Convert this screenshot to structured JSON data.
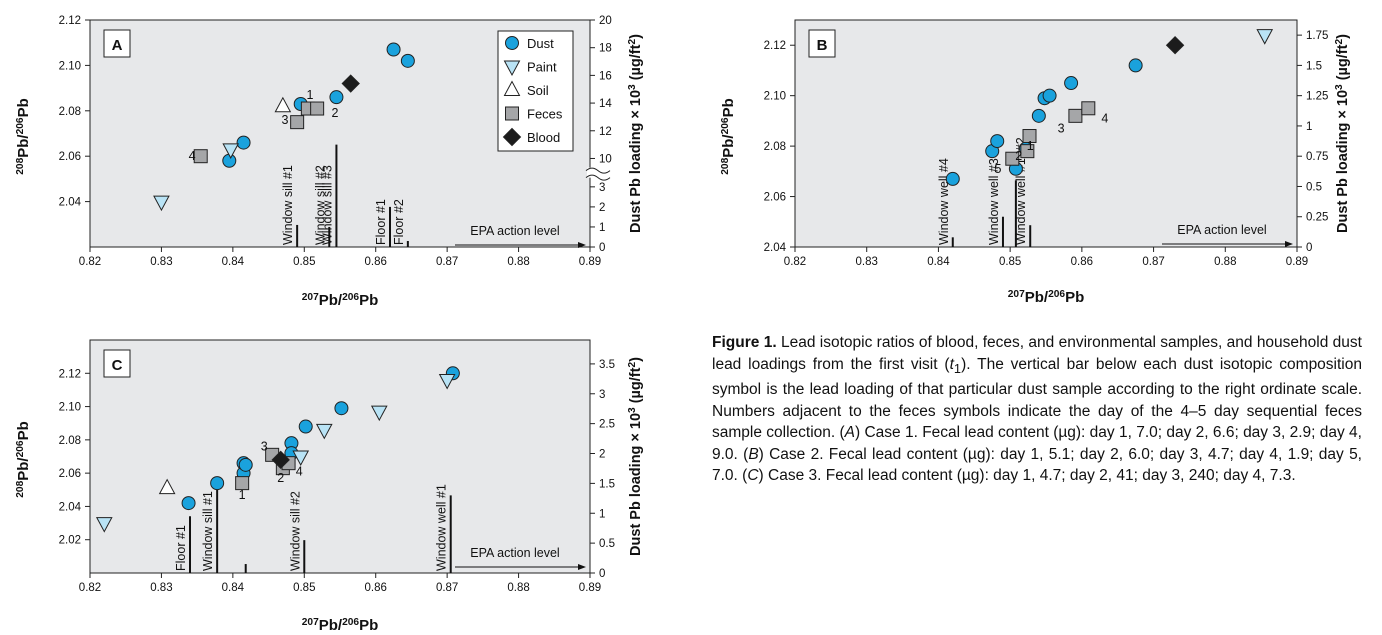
{
  "colors": {
    "plot_bg": "#e7e8ea",
    "dust": "#1aa2dd",
    "paint": "#b9e3f5",
    "soil": "#ffffff",
    "feces": "#a5a6a8",
    "blood": "#1c1c1c"
  },
  "legend": {
    "entries": [
      {
        "label": "Dust",
        "symbol": "circle"
      },
      {
        "label": "Paint",
        "symbol": "triangle-down"
      },
      {
        "label": "Soil",
        "symbol": "triangle-up"
      },
      {
        "label": "Feces",
        "symbol": "square"
      },
      {
        "label": "Blood",
        "symbol": "diamond"
      }
    ]
  },
  "caption": {
    "figure_label": "Figure 1.",
    "text_1": " Lead isotopic ratios of blood, feces, and environmental samples, and household dust lead loadings from the first visit (",
    "t_symbol": "t",
    "t_sub": "1",
    "text_2": "). The vertical bar below each dust isotopic composition symbol is the lead loading of that particular dust sample according to the right ordinate scale. Numbers adjacent to the feces symbols indicate the day of the 4–5 day sequential feces sample collection. (",
    "case_a": "A",
    "text_3": ") Case 1. Fecal lead content (µg): day 1, 7.0; day 2, 6.6; day 3, 2.9; day 4, 9.0. (",
    "case_b": "B",
    "text_4": ") Case 2. Fecal lead content (µg): day 1, 5.1; day 2, 6.0; day 3, 4.7; day 4, 1.9; day 5, 7.0. (",
    "case_c": "C",
    "text_5": ") Case 3. Fecal lead content (µg): day 1, 4.7; day 2, 41; day 3, 240; day 4, 7.3."
  },
  "chart_data": [
    {
      "panel": "A",
      "type": "scatter",
      "xlabel": "207Pb/206Pb",
      "ylabel": "208Pb/206Pb",
      "y2label": "Dust Pb loading × 103 (µg/ft2)",
      "xlim": [
        0.82,
        0.89
      ],
      "ylim": [
        2.02,
        2.12
      ],
      "xticks": [
        "0.82",
        "0.83",
        "0.84",
        "0.85",
        "0.86",
        "0.87",
        "0.88",
        "0.89"
      ],
      "yticks": [
        "2.04",
        "2.06",
        "2.08",
        "2.10",
        "2.12"
      ],
      "y2ticks_lower": [
        "0",
        "1",
        "2",
        "3"
      ],
      "y2ticks_upper": [
        "10",
        "12",
        "14",
        "16",
        "18",
        "20"
      ],
      "y2_break": [
        3,
        10
      ],
      "series": [
        {
          "name": "Dust",
          "points": [
            [
              0.8395,
              2.058
            ],
            [
              0.8415,
              2.066
            ],
            [
              0.8495,
              2.083
            ],
            [
              0.8545,
              2.086
            ],
            [
              0.8625,
              2.107
            ],
            [
              0.8645,
              2.102
            ]
          ]
        },
        {
          "name": "Paint",
          "points": [
            [
              0.83,
              2.04
            ],
            [
              0.8397,
              2.063
            ]
          ]
        },
        {
          "name": "Soil",
          "points": [
            [
              0.847,
              2.082
            ]
          ]
        },
        {
          "name": "Feces",
          "points": [
            [
              0.8355,
              2.06
            ],
            [
              0.8505,
              2.081
            ],
            [
              0.8518,
              2.081
            ],
            [
              0.849,
              2.075
            ]
          ],
          "labels": [
            "4",
            "1",
            "2",
            "3"
          ]
        },
        {
          "name": "Blood",
          "points": [
            [
              0.8565,
              2.092
            ]
          ]
        }
      ],
      "feces_labels": [
        {
          "text": "4",
          "x": 0.8343,
          "y": 2.06
        },
        {
          "text": "1",
          "x": 0.8508,
          "y": 2.087
        },
        {
          "text": "2",
          "x": 0.8543,
          "y": 2.079
        },
        {
          "text": "3",
          "x": 0.8473,
          "y": 2.076
        }
      ],
      "loading_bars": [
        {
          "label": "Window sill #1",
          "x": 0.849,
          "value": 1.1
        },
        {
          "label": "Window sill #2",
          "x": 0.8535,
          "value": 1.0
        },
        {
          "label": "Window sill #3",
          "x": 0.8545,
          "value": 11.0
        },
        {
          "label": "Floor #1",
          "x": 0.862,
          "value": 2.0
        },
        {
          "label": "Floor #2",
          "x": 0.8645,
          "value": 0.3
        }
      ],
      "epa_level": 0.1,
      "epa_label": "EPA action level"
    },
    {
      "panel": "B",
      "type": "scatter",
      "xlabel": "207Pb/206Pb",
      "ylabel": "208Pb/206Pb",
      "y2label": "Dust Pb loading × 103 (µg/ft2)",
      "xlim": [
        0.82,
        0.89
      ],
      "ylim": [
        2.04,
        2.13
      ],
      "xticks": [
        "0.82",
        "0.83",
        "0.84",
        "0.85",
        "0.86",
        "0.87",
        "0.88",
        "0.89"
      ],
      "yticks": [
        "2.04",
        "2.06",
        "2.08",
        "2.10",
        "2.12"
      ],
      "y2lim": [
        0,
        1.875
      ],
      "y2ticks": [
        "0",
        "0.25",
        "0.5",
        "0.75",
        "1",
        "1.25",
        "1.5",
        "1.75"
      ],
      "series": [
        {
          "name": "Dust",
          "points": [
            [
              0.842,
              2.067
            ],
            [
              0.8475,
              2.078
            ],
            [
              0.8482,
              2.082
            ],
            [
              0.8508,
              2.071
            ],
            [
              0.8522,
              2.079
            ],
            [
              0.854,
              2.092
            ],
            [
              0.8548,
              2.099
            ],
            [
              0.8555,
              2.1
            ],
            [
              0.8585,
              2.105
            ],
            [
              0.8675,
              2.112
            ]
          ]
        },
        {
          "name": "Paint",
          "points": [
            [
              0.8855,
              2.124
            ]
          ]
        },
        {
          "name": "Feces",
          "points": [
            [
              0.8503,
              2.075
            ],
            [
              0.8524,
              2.078
            ],
            [
              0.8591,
              2.092
            ],
            [
              0.8527,
              2.084
            ],
            [
              0.8609,
              2.095
            ]
          ],
          "labels": [
            "5",
            "2",
            "3",
            "1",
            "4"
          ]
        },
        {
          "name": "Blood",
          "points": [
            [
              0.873,
              2.12
            ]
          ]
        }
      ],
      "feces_labels": [
        {
          "text": "5",
          "x": 0.8483,
          "y": 2.071
        },
        {
          "text": "2",
          "x": 0.8512,
          "y": 2.076
        },
        {
          "text": "3",
          "x": 0.8571,
          "y": 2.087
        },
        {
          "text": "1",
          "x": 0.8528,
          "y": 2.08
        },
        {
          "text": "4",
          "x": 0.8632,
          "y": 2.091
        }
      ],
      "loading_bars": [
        {
          "label": "Window well #4",
          "x": 0.842,
          "value": 0.08
        },
        {
          "label": "Window well #3",
          "x": 0.849,
          "value": 0.25
        },
        {
          "label": "",
          "x": 0.8508,
          "value": 0.55
        },
        {
          "label": "Window well #1, #2",
          "x": 0.8528,
          "value": 0.18
        }
      ],
      "epa_level": 0.025,
      "epa_label": "EPA action level"
    },
    {
      "panel": "C",
      "type": "scatter",
      "xlabel": "207Pb/206Pb",
      "ylabel": "208Pb/206Pb",
      "y2label": "Dust Pb loading × 103 (µg/ft2)",
      "xlim": [
        0.82,
        0.89
      ],
      "ylim": [
        2.0,
        2.14
      ],
      "xticks": [
        "0.82",
        "0.83",
        "0.84",
        "0.85",
        "0.86",
        "0.87",
        "0.88",
        "0.89"
      ],
      "yticks": [
        "2.02",
        "2.04",
        "2.06",
        "2.08",
        "2.10",
        "2.12"
      ],
      "y2lim": [
        0,
        3.9
      ],
      "y2ticks": [
        "0",
        "0.5",
        "1",
        "1.5",
        "2",
        "2.5",
        "3",
        "3.5"
      ],
      "series": [
        {
          "name": "Dust",
          "points": [
            [
              0.8338,
              2.042
            ],
            [
              0.8378,
              2.054
            ],
            [
              0.8415,
              2.06
            ],
            [
              0.8415,
              2.066
            ],
            [
              0.8418,
              2.065
            ],
            [
              0.8482,
              2.078
            ],
            [
              0.8482,
              2.072
            ],
            [
              0.8502,
              2.088
            ],
            [
              0.8552,
              2.099
            ],
            [
              0.8708,
              2.12
            ]
          ]
        },
        {
          "name": "Paint",
          "points": [
            [
              0.822,
              2.03
            ],
            [
              0.8495,
              2.07
            ],
            [
              0.8528,
              2.086
            ],
            [
              0.8605,
              2.097
            ],
            [
              0.87,
              2.116
            ]
          ]
        },
        {
          "name": "Soil",
          "points": [
            [
              0.8308,
              2.051
            ]
          ]
        },
        {
          "name": "Feces",
          "points": [
            [
              0.8413,
              2.054
            ],
            [
              0.847,
              2.063
            ],
            [
              0.8455,
              2.071
            ],
            [
              0.8478,
              2.066
            ]
          ],
          "labels": [
            "1",
            "2",
            "3",
            "4"
          ]
        },
        {
          "name": "Blood",
          "points": [
            [
              0.8467,
              2.068
            ]
          ]
        }
      ],
      "feces_labels": [
        {
          "text": "1",
          "x": 0.8413,
          "y": 2.047
        },
        {
          "text": "2",
          "x": 0.8467,
          "y": 2.057
        },
        {
          "text": "3",
          "x": 0.8444,
          "y": 2.076
        },
        {
          "text": "4",
          "x": 0.8493,
          "y": 2.061
        }
      ],
      "loading_bars": [
        {
          "label": "Floor #1",
          "x": 0.834,
          "value": 0.95
        },
        {
          "label": "Window sill #1",
          "x": 0.8378,
          "value": 1.5
        },
        {
          "label": "",
          "x": 0.8418,
          "value": 0.15
        },
        {
          "label": "Window sill #2",
          "x": 0.85,
          "value": 0.55
        },
        {
          "label": "Window well #1",
          "x": 0.8705,
          "value": 1.3
        }
      ],
      "epa_level": 0.1,
      "epa_label": "EPA action level"
    }
  ]
}
